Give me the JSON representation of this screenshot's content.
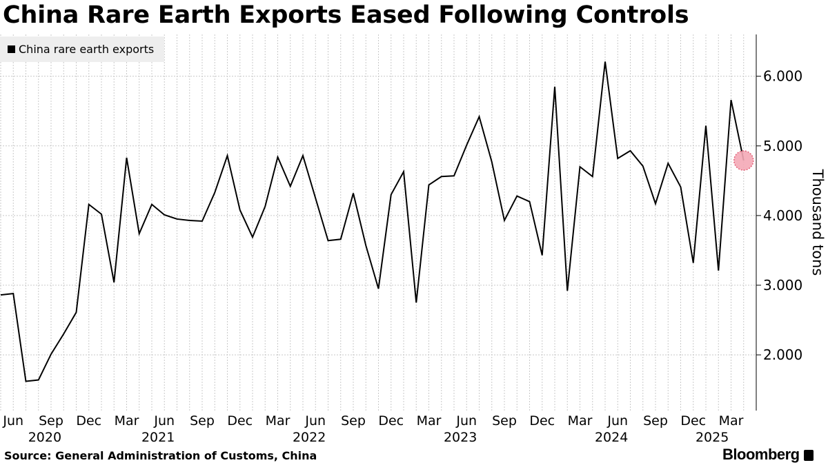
{
  "header": {
    "title": "China Rare Earth Exports Eased Following Controls"
  },
  "footer": {
    "source": "Source: General Administration of Customs, China",
    "brand": "Bloomberg"
  },
  "chart_data": {
    "type": "line",
    "title": "China Rare Earth Exports Eased Following Controls",
    "ylabel": "Thousand tons",
    "ylim": [
      1.2,
      6.6
    ],
    "yticks": [
      2.0,
      3.0,
      4.0,
      5.0,
      6.0
    ],
    "ytick_labels": [
      "2.000",
      "3.000",
      "4.000",
      "5.000",
      "6.000"
    ],
    "grid": true,
    "legend": {
      "position": "top-left",
      "label": "China rare earth exports"
    },
    "month_tick_labels": [
      "Jun",
      "Sep",
      "Dec",
      "Mar",
      "Jun",
      "Sep",
      "Dec",
      "Mar",
      "Jun",
      "Sep",
      "Dec",
      "Mar",
      "Jun",
      "Sep",
      "Dec",
      "Mar",
      "Jun",
      "Sep",
      "Dec",
      "Mar"
    ],
    "year_labels": [
      "2020",
      "2021",
      "2022",
      "2023",
      "2024",
      "2025"
    ],
    "highlight": {
      "x": "2025-04",
      "y": 4.79
    },
    "series": [
      {
        "name": "China rare earth exports",
        "color": "#000000",
        "x": [
          "2020-05",
          "2020-06",
          "2020-07",
          "2020-08",
          "2020-09",
          "2020-10",
          "2020-11",
          "2020-12",
          "2021-01",
          "2021-02",
          "2021-03",
          "2021-04",
          "2021-05",
          "2021-06",
          "2021-07",
          "2021-08",
          "2021-09",
          "2021-10",
          "2021-11",
          "2021-12",
          "2022-01",
          "2022-02",
          "2022-03",
          "2022-04",
          "2022-05",
          "2022-06",
          "2022-07",
          "2022-08",
          "2022-09",
          "2022-10",
          "2022-11",
          "2022-12",
          "2023-01",
          "2023-02",
          "2023-03",
          "2023-04",
          "2023-05",
          "2023-06",
          "2023-07",
          "2023-08",
          "2023-09",
          "2023-10",
          "2023-11",
          "2023-12",
          "2024-01",
          "2024-02",
          "2024-03",
          "2024-04",
          "2024-05",
          "2024-06",
          "2024-07",
          "2024-08",
          "2024-09",
          "2024-10",
          "2024-11",
          "2024-12",
          "2025-01",
          "2025-02",
          "2025-03",
          "2025-04"
        ],
        "values": [
          2.86,
          2.88,
          1.62,
          1.64,
          2.01,
          2.3,
          2.61,
          4.16,
          4.02,
          3.04,
          4.83,
          3.74,
          4.16,
          4.01,
          3.95,
          3.93,
          3.92,
          4.33,
          4.86,
          4.08,
          3.69,
          4.13,
          4.84,
          4.42,
          4.86,
          4.25,
          3.64,
          3.66,
          4.32,
          3.57,
          2.95,
          4.3,
          4.63,
          2.75,
          4.44,
          4.56,
          4.57,
          5.01,
          5.42,
          4.77,
          3.93,
          4.28,
          4.2,
          3.43,
          5.85,
          2.92,
          4.7,
          4.56,
          6.21,
          4.82,
          4.93,
          4.71,
          4.17,
          4.75,
          4.41,
          3.32,
          5.29,
          3.21,
          5.66,
          4.79
        ]
      }
    ]
  }
}
